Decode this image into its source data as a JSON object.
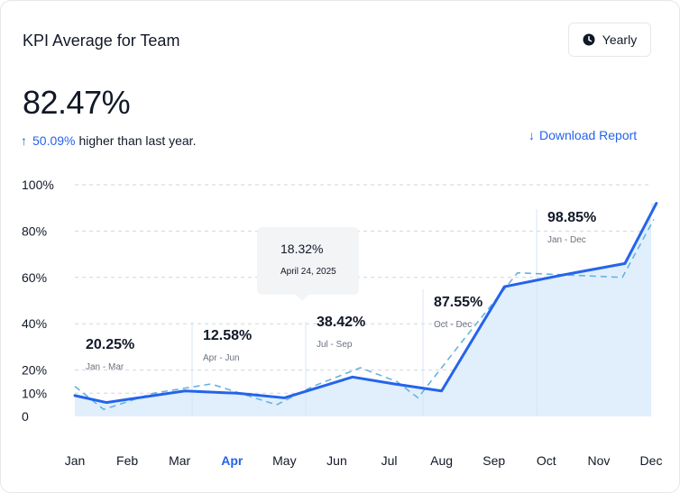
{
  "header": {
    "title": "KPI Average for Team",
    "period_button": "Yearly",
    "period_icon": "clock-icon"
  },
  "summary": {
    "value": "82.47%",
    "delta_arrow": "↑",
    "delta_value": "50.09%",
    "delta_text": "higher than last year.",
    "download_arrow": "↓",
    "download_label": "Download Report"
  },
  "colors": {
    "accent": "#2563eb",
    "area": "#e0effb",
    "dashed": "#66b3e0",
    "grid": "#d1d5db"
  },
  "chart_data": {
    "type": "line",
    "categories": [
      "Jan",
      "Feb",
      "Mar",
      "Apr",
      "May",
      "Jun",
      "Jul",
      "Aug",
      "Sep",
      "Oct",
      "Nov",
      "Dec"
    ],
    "highlighted_category": "Apr",
    "ylim": [
      0,
      100
    ],
    "y_ticks": [
      "0",
      "10%",
      "20%",
      "40%",
      "60%",
      "80%",
      "100%"
    ],
    "grid": true,
    "series": [
      {
        "style": "solid",
        "x": [
          0,
          0.6,
          2.1,
          3.1,
          4.0,
          5.3,
          6.1,
          7.0,
          8.2,
          9.3,
          10.5,
          11.1
        ],
        "values": [
          9,
          6,
          11,
          10,
          8,
          17,
          14,
          11,
          56,
          61,
          66,
          92
        ]
      },
      {
        "style": "dashed",
        "x": [
          0,
          0.55,
          1.5,
          2.6,
          3.85,
          4.55,
          5.45,
          6.15,
          6.55,
          7.45,
          8.45,
          10.45,
          11.05
        ],
        "values": [
          13,
          3,
          10,
          14,
          5,
          13,
          21,
          15,
          8,
          34,
          62,
          60,
          85
        ]
      }
    ],
    "annotations": [
      {
        "value": "20.25%",
        "period": "Jan - Mar"
      },
      {
        "value": "12.58%",
        "period": "Apr - Jun"
      },
      {
        "value": "38.42%",
        "period": "Jul - Sep"
      },
      {
        "value": "87.55%",
        "period": "Oct - Dec"
      },
      {
        "value": "98.85%",
        "period": "Jan - Dec"
      }
    ],
    "tooltip": {
      "value": "18.32%",
      "date": "April 24, 2025"
    }
  }
}
